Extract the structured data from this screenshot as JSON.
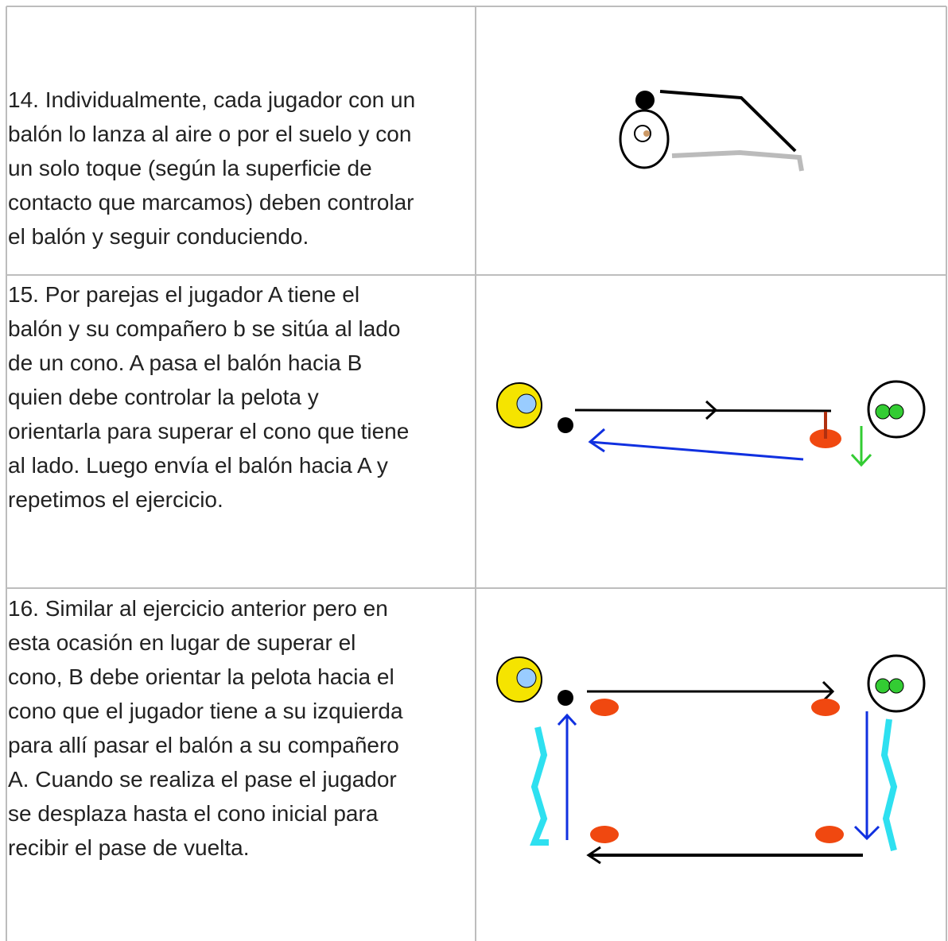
{
  "table": {
    "rows": [
      {
        "lines": [
          "14. Individualmente, cada jugador con un",
          "balón lo lanza al aire o por el suelo y con",
          "un solo toque (según la superficie de",
          "contacto que marcamos) deben controlar",
          "el balón y seguir conduciendo."
        ]
      },
      {
        "lines": [
          "15. Por parejas el jugador A tiene el",
          "balón y su compañero b se sitúa al lado",
          "de un cono. A pasa el balón hacia B",
          "quien debe controlar la pelota y",
          "orientarla para superar el cono que tiene",
          "al lado. Luego envía el balón hacia A y",
          "repetimos el ejercicio."
        ]
      },
      {
        "lines": [
          "16. Similar al ejercicio anterior pero en",
          "esta ocasión en lugar de superar el",
          "cono, B debe orientar la pelota hacia el",
          "cono que el jugador tiene a su izquierda",
          "para allí pasar el balón a su compañero",
          "A. Cuando se realiza el pase el jugador",
          "se desplaza hasta el cono inicial para",
          "recibir el pase de vuelta."
        ]
      }
    ]
  }
}
